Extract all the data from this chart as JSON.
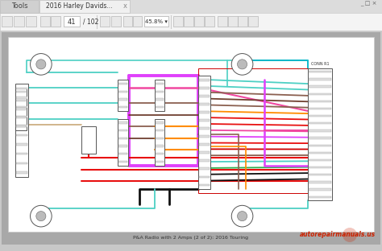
{
  "fig_width": 4.74,
  "fig_height": 3.12,
  "dpi": 100,
  "bg_outer": "#c8c8c8",
  "bg_tab_bar": "#e8e8e8",
  "bg_tab_active": "#f8f8f8",
  "bg_toolbar": "#f2f2f2",
  "bg_content": "#b8b8b8",
  "bg_diagram": "#ffffff",
  "tab_tools": "Tools",
  "tab_active": "2016 Harley Davids...",
  "diagram_caption": "P&A Radio with 2 Amps (2 of 2): 2016 Touring",
  "watermark_text": "autorepairmanuals.us",
  "page_num": "41",
  "page_total": "102",
  "zoom_pct": "45.8%",
  "colors": {
    "teal": "#4dd0c4",
    "cyan": "#00b4c8",
    "magenta": "#e040fb",
    "pink": "#f048a0",
    "orange": "#ff8c00",
    "red": "#e81010",
    "darkred": "#cc0000",
    "brown": "#8b6050",
    "darkbrown": "#704030",
    "green": "#30b050",
    "black": "#101010",
    "gray": "#888888",
    "lightgray": "#cccccc",
    "white": "#ffffff",
    "tan": "#c8a878",
    "yellow": "#e8e000",
    "purple": "#9030c0"
  }
}
